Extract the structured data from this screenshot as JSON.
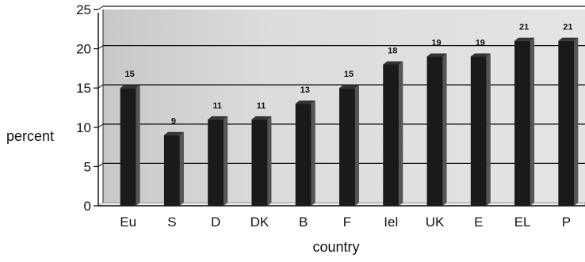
{
  "chart_data": {
    "type": "bar",
    "title": "",
    "xlabel": "country",
    "ylabel": "percent",
    "categories": [
      "Eu",
      "S",
      "D",
      "DK",
      "B",
      "F",
      "Iel",
      "UK",
      "E",
      "EL",
      "P"
    ],
    "values": [
      15,
      9,
      11,
      11,
      13,
      15,
      18,
      19,
      19,
      21,
      21
    ],
    "data_labels": [
      "15",
      "9",
      "11",
      "11",
      "13",
      "15",
      "18",
      "19",
      "19",
      "21",
      "21"
    ],
    "ylim": [
      0,
      25
    ],
    "yticks": [
      "0",
      "5",
      "10",
      "15",
      "20",
      "25"
    ],
    "grid": true,
    "style": "3d-column",
    "colors": {
      "bar": "#1a1a1a",
      "bar_side": "#555555",
      "plot_background": "#d9d9d9",
      "gridline": "#111111"
    }
  }
}
